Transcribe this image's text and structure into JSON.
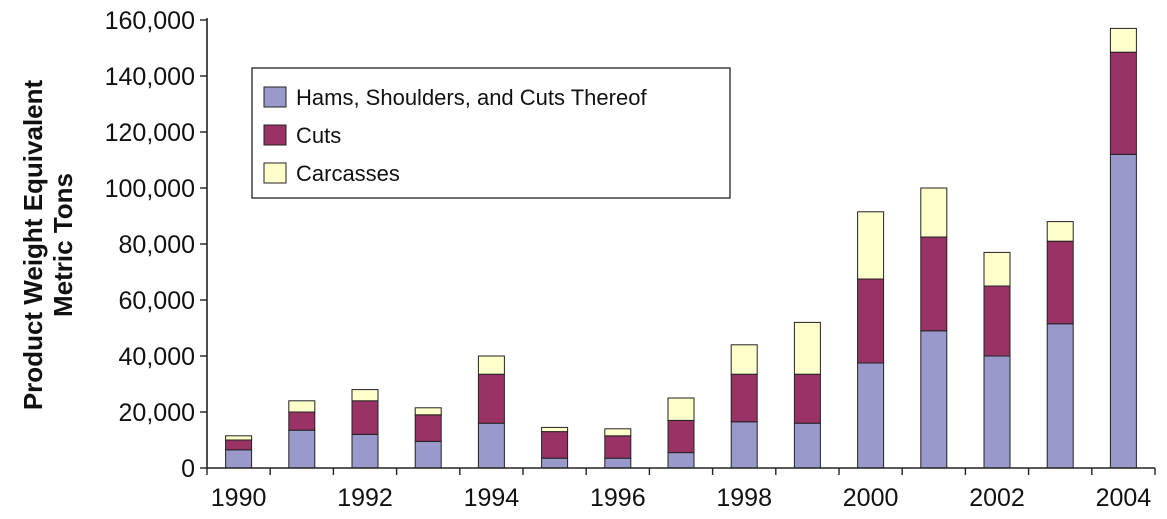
{
  "chart_data": {
    "type": "bar",
    "stacked": true,
    "title": "",
    "xlabel": "",
    "ylabel": [
      "Product Weight Equivalent",
      "Metric Tons"
    ],
    "ylim": [
      0,
      160000
    ],
    "yticks": [
      0,
      20000,
      40000,
      60000,
      80000,
      100000,
      120000,
      140000,
      160000
    ],
    "ytick_labels": [
      "0",
      "20,000",
      "40,000",
      "60,000",
      "80,000",
      "100,000",
      "120,000",
      "140,000",
      "160,000"
    ],
    "categories": [
      "1990",
      "1991",
      "1992",
      "1993",
      "1994",
      "1995",
      "1996",
      "1997",
      "1998",
      "1999",
      "2000",
      "2001",
      "2002",
      "2003",
      "2004"
    ],
    "xtick_labels": [
      "1990",
      "1992",
      "1994",
      "1996",
      "1998",
      "2000",
      "2002",
      "2004"
    ],
    "grid": false,
    "legend_position": "top-left",
    "series": [
      {
        "name": "Hams, Shoulders, and Cuts Thereof",
        "color": "#9999cc",
        "values": [
          6500,
          13500,
          12000,
          9500,
          16000,
          3500,
          3500,
          5500,
          16500,
          16000,
          37500,
          49000,
          40000,
          51500,
          112000
        ]
      },
      {
        "name": "Cuts",
        "color": "#993366",
        "values": [
          3500,
          6500,
          12000,
          9500,
          17500,
          9500,
          8000,
          11500,
          17000,
          17500,
          30000,
          33500,
          25000,
          29500,
          36500
        ]
      },
      {
        "name": "Carcasses",
        "color": "#ffffcc",
        "values": [
          1500,
          4000,
          4000,
          2500,
          6500,
          1500,
          2500,
          8000,
          10500,
          18500,
          24000,
          17500,
          12000,
          7000,
          8500
        ]
      }
    ]
  }
}
